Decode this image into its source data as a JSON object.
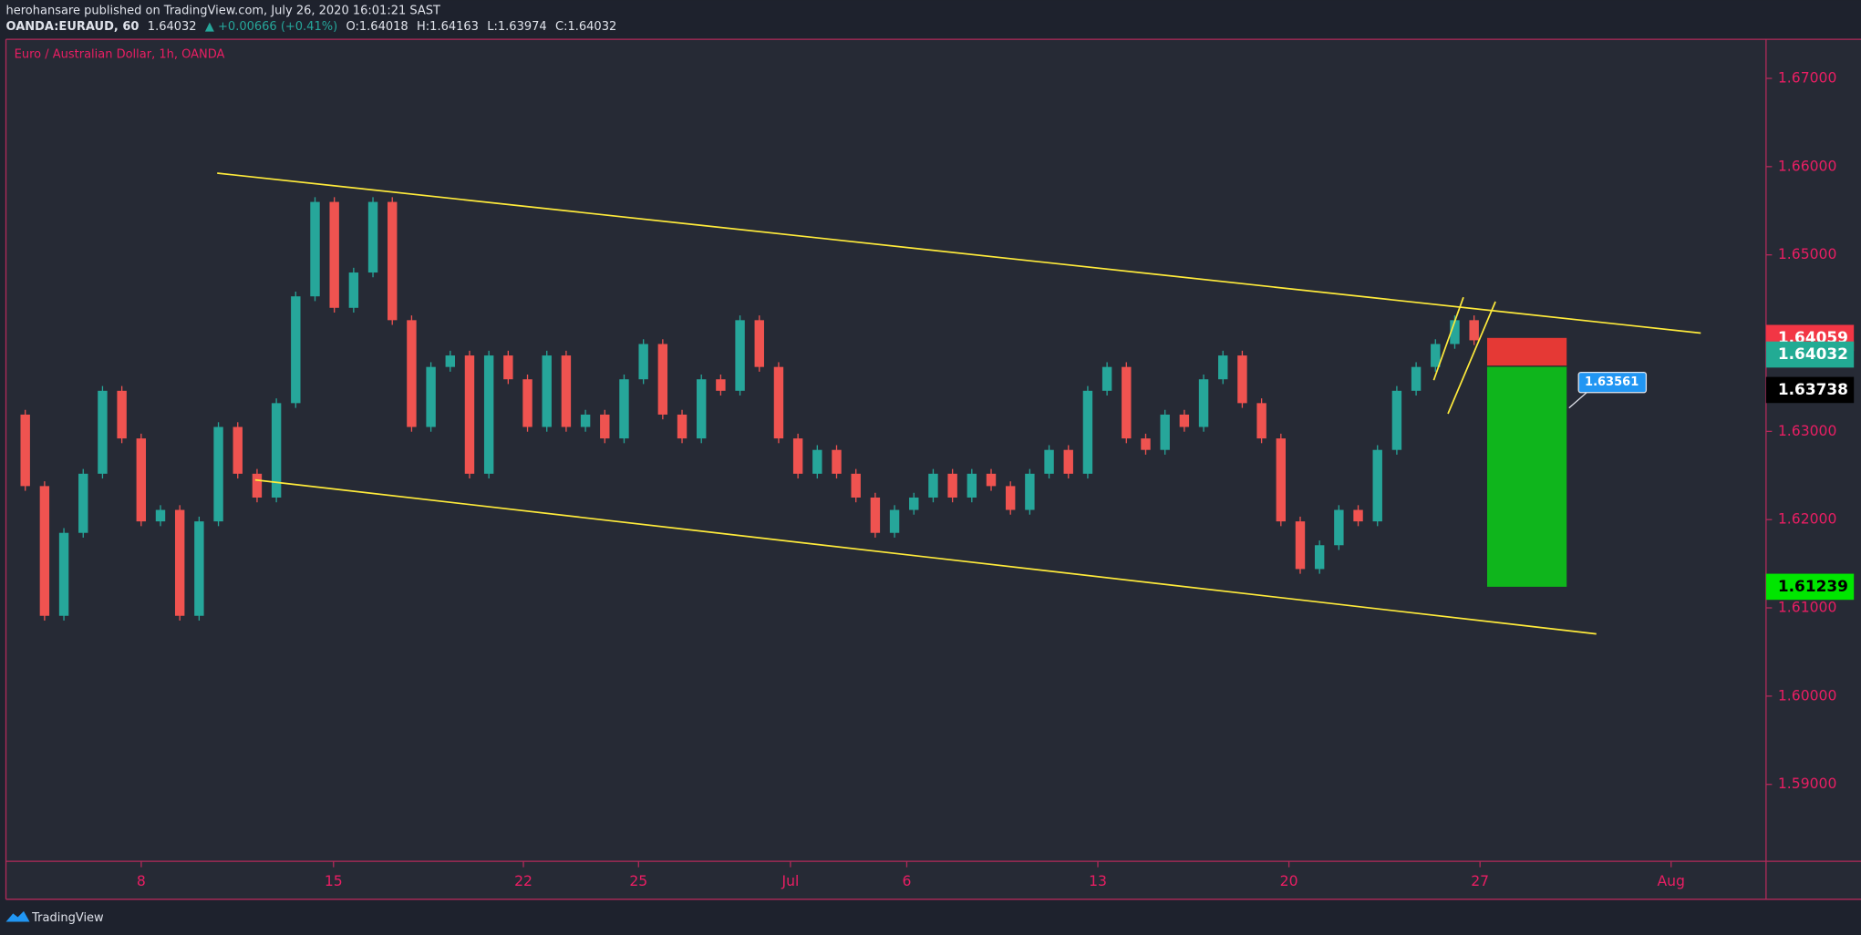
{
  "header": {
    "publisher": "herohansare published on TradingView.com, July 26, 2020 16:01:21 SAST",
    "symbol": "OANDA:EURAUD, 60",
    "last": "1.64032",
    "change": "▲ +0.00666 (+0.41%)",
    "open": "O:1.64018",
    "high": "H:1.64163",
    "low": "L:1.63974",
    "close": "C:1.64032"
  },
  "footer": {
    "brand": "TradingView"
  },
  "chart_data": {
    "type": "candlestick",
    "title": "Euro / Australian Dollar, 1h, OANDA",
    "xtick_labels": [
      "8",
      "15",
      "22",
      "25",
      "Jul",
      "6",
      "13",
      "20",
      "27",
      "Aug"
    ],
    "values": [
      1.6319,
      1.6238,
      1.6091,
      1.6185,
      1.6252,
      1.6346,
      1.6292,
      1.6198,
      1.6211,
      1.6091,
      1.6198,
      1.6305,
      1.6252,
      1.6225,
      1.6332,
      1.6453,
      1.656,
      1.644,
      1.648,
      1.656,
      1.6426,
      1.6305,
      1.6373,
      1.6386,
      1.6252,
      1.6386,
      1.6359,
      1.6305,
      1.6386,
      1.6305,
      1.6319,
      1.6292,
      1.6359,
      1.6399,
      1.6319,
      1.6292,
      1.6359,
      1.6346,
      1.6426,
      1.6373,
      1.6292,
      1.6252,
      1.6279,
      1.6252,
      1.6225,
      1.6185,
      1.6211,
      1.6225,
      1.6252,
      1.6225,
      1.6252,
      1.6238,
      1.6211,
      1.6252,
      1.6279,
      1.6252,
      1.6346,
      1.6373,
      1.6292,
      1.6279,
      1.6319,
      1.6305,
      1.6359,
      1.6386,
      1.6332,
      1.6292,
      1.6198,
      1.6144,
      1.6171,
      1.6211,
      1.6198,
      1.6279,
      1.6346,
      1.6373,
      1.6399,
      1.6426,
      1.64032
    ],
    "up_color": "#26a69a",
    "down_color": "#ef5350",
    "ylim": [
      1.58128,
      1.67443
    ],
    "yticks": [
      {
        "value": 1.59,
        "label": "1.59000"
      },
      {
        "value": 1.6,
        "label": "1.60000"
      },
      {
        "value": 1.61,
        "label": "1.61000"
      },
      {
        "value": 1.62,
        "label": "1.62000"
      },
      {
        "value": 1.63,
        "label": "1.63000"
      },
      {
        "value": 1.64,
        "label": "1.64000"
      },
      {
        "value": 1.65,
        "label": "1.65000"
      },
      {
        "value": 1.66,
        "label": "1.66000"
      },
      {
        "value": 1.67,
        "label": "1.67000"
      }
    ],
    "trend_lines": [
      [
        1.65926,
        1.64114
      ],
      [
        1.6245,
        1.60705
      ],
      [
        1.6358,
        1.6452
      ],
      [
        1.632,
        1.6447
      ]
    ],
    "position": {
      "stop": 1.64059,
      "entry": 1.63738,
      "target": 1.61239
    },
    "marker": {
      "value": 1.63561,
      "label": "1.63561"
    },
    "price_labels": [
      {
        "value": 1.64059,
        "label": "1.64059",
        "color": "#f23645"
      },
      {
        "value": 1.64032,
        "label": "1.64032",
        "color": "#22ab94"
      },
      {
        "value": 1.63738,
        "label": "1.63738",
        "color": "#000000"
      },
      {
        "value": 1.61239,
        "label": "1.61239",
        "color": "#00e600"
      }
    ]
  }
}
